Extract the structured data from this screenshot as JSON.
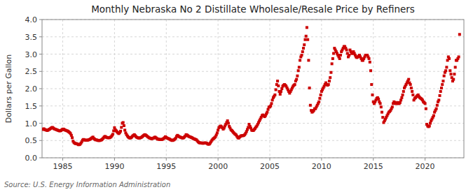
{
  "chart_data": {
    "type": "scatter",
    "title": "Monthly Nebraska No 2 Distillate Wholesale/Resale Price by Refiners",
    "ylabel": "Dollars per Gallon",
    "source": "Source: U.S. Energy Information Administration",
    "color": "#cc0000",
    "marker": "square",
    "grid": true,
    "xlim": [
      1983.0,
      2023.75
    ],
    "ylim": [
      0.0,
      4.0
    ],
    "xticks": [
      1985,
      1990,
      1995,
      2000,
      2005,
      2010,
      2015,
      2020
    ],
    "yticks": [
      {
        "value": 0.0,
        "label": "0.0"
      },
      0.5,
      {
        "value": 1.0,
        "label": "1.0"
      },
      1.5,
      {
        "value": 2.0,
        "label": "2.0"
      },
      2.5,
      {
        "value": 3.0,
        "label": "3.0"
      },
      3.5,
      {
        "value": 4.0,
        "label": "4.0"
      }
    ],
    "x": [
      1983.083,
      1983.167,
      1983.25,
      1983.333,
      1983.417,
      1983.5,
      1983.583,
      1983.667,
      1983.75,
      1983.833,
      1983.917,
      1984.0,
      1984.083,
      1984.167,
      1984.25,
      1984.333,
      1984.417,
      1984.5,
      1984.583,
      1984.667,
      1984.75,
      1984.833,
      1984.917,
      1985.0,
      1985.083,
      1985.167,
      1985.25,
      1985.333,
      1985.417,
      1985.5,
      1985.583,
      1985.667,
      1985.75,
      1985.833,
      1985.917,
      1986.0,
      1986.083,
      1986.167,
      1986.25,
      1986.333,
      1986.417,
      1986.5,
      1986.583,
      1986.667,
      1986.75,
      1986.833,
      1986.917,
      1987.0,
      1987.083,
      1987.167,
      1987.25,
      1987.333,
      1987.417,
      1987.5,
      1987.583,
      1987.667,
      1987.75,
      1987.833,
      1987.917,
      1988.0,
      1988.083,
      1988.167,
      1988.25,
      1988.333,
      1988.417,
      1988.5,
      1988.583,
      1988.667,
      1988.75,
      1988.833,
      1988.917,
      1989.0,
      1989.083,
      1989.167,
      1989.25,
      1989.333,
      1989.417,
      1989.5,
      1989.583,
      1989.667,
      1989.75,
      1989.833,
      1989.917,
      1990.0,
      1990.083,
      1990.167,
      1990.25,
      1990.333,
      1990.417,
      1990.5,
      1990.583,
      1990.667,
      1990.75,
      1990.833,
      1990.917,
      1991.0,
      1991.083,
      1991.167,
      1991.25,
      1991.333,
      1991.417,
      1991.5,
      1991.583,
      1991.667,
      1991.75,
      1991.833,
      1991.917,
      1992.0,
      1992.083,
      1992.167,
      1992.25,
      1992.333,
      1992.417,
      1992.5,
      1992.583,
      1992.667,
      1992.75,
      1992.833,
      1992.917,
      1993.0,
      1993.083,
      1993.167,
      1993.25,
      1993.333,
      1993.417,
      1993.5,
      1993.583,
      1993.667,
      1993.75,
      1993.833,
      1993.917,
      1994.0,
      1994.083,
      1994.167,
      1994.25,
      1994.333,
      1994.417,
      1994.5,
      1994.583,
      1994.667,
      1994.75,
      1994.833,
      1994.917,
      1995.0,
      1995.083,
      1995.167,
      1995.25,
      1995.333,
      1995.417,
      1995.5,
      1995.583,
      1995.667,
      1995.75,
      1995.833,
      1995.917,
      1996.0,
      1996.083,
      1996.167,
      1996.25,
      1996.333,
      1996.417,
      1996.5,
      1996.583,
      1996.667,
      1996.75,
      1996.833,
      1996.917,
      1997.0,
      1997.083,
      1997.167,
      1997.25,
      1997.333,
      1997.417,
      1997.5,
      1997.583,
      1997.667,
      1997.75,
      1997.833,
      1997.917,
      1998.0,
      1998.083,
      1998.167,
      1998.25,
      1998.333,
      1998.417,
      1998.5,
      1998.583,
      1998.667,
      1998.75,
      1998.833,
      1998.917,
      1999.0,
      1999.083,
      1999.167,
      1999.25,
      1999.333,
      1999.417,
      1999.5,
      1999.583,
      1999.667,
      1999.75,
      1999.833,
      1999.917,
      2000.0,
      2000.083,
      2000.167,
      2000.25,
      2000.333,
      2000.417,
      2000.5,
      2000.583,
      2000.667,
      2000.75,
      2000.833,
      2000.917,
      2001.0,
      2001.083,
      2001.167,
      2001.25,
      2001.333,
      2001.417,
      2001.5,
      2001.583,
      2001.667,
      2001.75,
      2001.833,
      2001.917,
      2002.0,
      2002.083,
      2002.167,
      2002.25,
      2002.333,
      2002.417,
      2002.5,
      2002.583,
      2002.667,
      2002.75,
      2002.833,
      2002.917,
      2003.0,
      2003.083,
      2003.167,
      2003.25,
      2003.333,
      2003.417,
      2003.5,
      2003.583,
      2003.667,
      2003.75,
      2003.833,
      2003.917,
      2004.0,
      2004.083,
      2004.167,
      2004.25,
      2004.333,
      2004.417,
      2004.5,
      2004.583,
      2004.667,
      2004.75,
      2004.833,
      2004.917,
      2005.0,
      2005.083,
      2005.167,
      2005.25,
      2005.333,
      2005.417,
      2005.5,
      2005.583,
      2005.667,
      2005.75,
      2005.833,
      2005.917,
      2006.0,
      2006.083,
      2006.167,
      2006.25,
      2006.333,
      2006.417,
      2006.5,
      2006.583,
      2006.667,
      2006.75,
      2006.833,
      2006.917,
      2007.0,
      2007.083,
      2007.167,
      2007.25,
      2007.333,
      2007.417,
      2007.5,
      2007.583,
      2007.667,
      2007.75,
      2007.833,
      2007.917,
      2008.0,
      2008.083,
      2008.167,
      2008.25,
      2008.333,
      2008.417,
      2008.5,
      2008.583,
      2008.667,
      2008.75,
      2008.833,
      2008.917,
      2009.0,
      2009.083,
      2009.167,
      2009.25,
      2009.333,
      2009.417,
      2009.5,
      2009.583,
      2009.667,
      2009.75,
      2009.833,
      2009.917,
      2010.0,
      2010.083,
      2010.167,
      2010.25,
      2010.333,
      2010.417,
      2010.5,
      2010.583,
      2010.667,
      2010.75,
      2010.833,
      2010.917,
      2011.0,
      2011.083,
      2011.167,
      2011.25,
      2011.333,
      2011.417,
      2011.5,
      2011.583,
      2011.667,
      2011.75,
      2011.833,
      2011.917,
      2012.0,
      2012.083,
      2012.167,
      2012.25,
      2012.333,
      2012.417,
      2012.5,
      2012.583,
      2012.667,
      2012.75,
      2012.833,
      2012.917,
      2013.0,
      2013.083,
      2013.167,
      2013.25,
      2013.333,
      2013.417,
      2013.5,
      2013.583,
      2013.667,
      2013.75,
      2013.833,
      2013.917,
      2014.0,
      2014.083,
      2014.167,
      2014.25,
      2014.333,
      2014.417,
      2014.5,
      2014.583,
      2014.667,
      2014.75,
      2014.833,
      2014.917,
      2015.0,
      2015.083,
      2015.167,
      2015.25,
      2015.333,
      2015.417,
      2015.5,
      2015.583,
      2015.667,
      2015.75,
      2015.833,
      2015.917,
      2016.0,
      2016.083,
      2016.167,
      2016.25,
      2016.333,
      2016.417,
      2016.5,
      2016.583,
      2016.667,
      2016.75,
      2016.833,
      2016.917,
      2017.0,
      2017.083,
      2017.167,
      2017.25,
      2017.333,
      2017.417,
      2017.5,
      2017.583,
      2017.667,
      2017.75,
      2017.833,
      2017.917,
      2018.0,
      2018.083,
      2018.167,
      2018.25,
      2018.333,
      2018.417,
      2018.5,
      2018.583,
      2018.667,
      2018.75,
      2018.833,
      2018.917,
      2019.0,
      2019.083,
      2019.167,
      2019.25,
      2019.333,
      2019.417,
      2019.5,
      2019.583,
      2019.667,
      2019.75,
      2019.833,
      2019.917,
      2020.0,
      2020.083,
      2020.167,
      2020.25,
      2020.333,
      2020.417,
      2020.5,
      2020.583,
      2020.667,
      2020.75,
      2020.833,
      2020.917,
      2021.0,
      2021.083,
      2021.167,
      2021.25,
      2021.333,
      2021.417,
      2021.5,
      2021.583,
      2021.667,
      2021.75,
      2021.833,
      2021.917,
      2022.0,
      2022.083,
      2022.167,
      2022.25,
      2022.333,
      2022.417,
      2022.5,
      2022.583,
      2022.667,
      2022.75,
      2022.833,
      2022.917,
      2023.0,
      2023.083,
      2023.167,
      2023.25,
      2023.333
    ],
    "values": [
      0.82,
      0.84,
      0.82,
      0.81,
      0.8,
      0.79,
      0.8,
      0.82,
      0.83,
      0.85,
      0.87,
      0.88,
      0.86,
      0.84,
      0.83,
      0.82,
      0.81,
      0.8,
      0.79,
      0.78,
      0.78,
      0.79,
      0.81,
      0.83,
      0.83,
      0.81,
      0.8,
      0.79,
      0.78,
      0.77,
      0.75,
      0.73,
      0.7,
      0.65,
      0.58,
      0.48,
      0.44,
      0.42,
      0.41,
      0.41,
      0.4,
      0.38,
      0.38,
      0.39,
      0.42,
      0.46,
      0.51,
      0.53,
      0.52,
      0.51,
      0.51,
      0.51,
      0.51,
      0.52,
      0.53,
      0.54,
      0.56,
      0.58,
      0.6,
      0.56,
      0.54,
      0.52,
      0.52,
      0.51,
      0.5,
      0.5,
      0.5,
      0.51,
      0.52,
      0.54,
      0.57,
      0.6,
      0.62,
      0.6,
      0.59,
      0.58,
      0.58,
      0.58,
      0.59,
      0.61,
      0.64,
      0.68,
      0.78,
      0.87,
      0.81,
      0.78,
      0.75,
      0.72,
      0.7,
      0.73,
      0.77,
      0.88,
      1.0,
      1.02,
      0.93,
      0.8,
      0.72,
      0.67,
      0.63,
      0.6,
      0.58,
      0.57,
      0.58,
      0.6,
      0.63,
      0.65,
      0.67,
      0.64,
      0.61,
      0.59,
      0.58,
      0.57,
      0.57,
      0.58,
      0.59,
      0.61,
      0.63,
      0.65,
      0.67,
      0.66,
      0.64,
      0.62,
      0.6,
      0.58,
      0.57,
      0.56,
      0.55,
      0.56,
      0.57,
      0.58,
      0.6,
      0.58,
      0.56,
      0.54,
      0.54,
      0.53,
      0.53,
      0.53,
      0.53,
      0.54,
      0.56,
      0.58,
      0.61,
      0.59,
      0.57,
      0.56,
      0.55,
      0.54,
      0.52,
      0.51,
      0.5,
      0.51,
      0.52,
      0.54,
      0.57,
      0.62,
      0.65,
      0.63,
      0.61,
      0.6,
      0.59,
      0.58,
      0.57,
      0.58,
      0.6,
      0.63,
      0.67,
      0.66,
      0.64,
      0.62,
      0.61,
      0.6,
      0.59,
      0.58,
      0.56,
      0.55,
      0.54,
      0.53,
      0.52,
      0.49,
      0.46,
      0.44,
      0.43,
      0.43,
      0.43,
      0.42,
      0.42,
      0.43,
      0.43,
      0.43,
      0.42,
      0.4,
      0.39,
      0.4,
      0.43,
      0.47,
      0.51,
      0.54,
      0.56,
      0.58,
      0.61,
      0.66,
      0.72,
      0.8,
      0.87,
      0.9,
      0.92,
      0.9,
      0.87,
      0.83,
      0.86,
      0.92,
      0.97,
      1.02,
      1.07,
      1.0,
      0.91,
      0.86,
      0.81,
      0.79,
      0.76,
      0.73,
      0.7,
      0.68,
      0.66,
      0.62,
      0.58,
      0.57,
      0.6,
      0.62,
      0.64,
      0.64,
      0.64,
      0.65,
      0.67,
      0.71,
      0.76,
      0.82,
      0.88,
      0.97,
      0.91,
      0.86,
      0.8,
      0.79,
      0.79,
      0.82,
      0.85,
      0.89,
      0.92,
      0.97,
      1.02,
      1.07,
      1.12,
      1.17,
      1.22,
      1.24,
      1.22,
      1.19,
      1.22,
      1.27,
      1.32,
      1.4,
      1.47,
      1.47,
      1.5,
      1.57,
      1.67,
      1.74,
      1.78,
      1.82,
      1.97,
      2.12,
      2.22,
      2.08,
      1.92,
      1.84,
      1.92,
      2.0,
      2.07,
      2.1,
      2.12,
      2.1,
      2.07,
      2.02,
      1.97,
      1.92,
      1.87,
      1.92,
      1.97,
      2.02,
      2.07,
      2.1,
      2.12,
      2.22,
      2.27,
      2.37,
      2.52,
      2.62,
      2.82,
      2.92,
      2.97,
      3.07,
      3.17,
      3.27,
      3.42,
      3.52,
      3.77,
      3.42,
      2.82,
      2.02,
      1.52,
      1.37,
      1.32,
      1.34,
      1.37,
      1.42,
      1.42,
      1.47,
      1.52,
      1.57,
      1.62,
      1.72,
      1.82,
      1.92,
      1.97,
      2.02,
      2.07,
      2.12,
      2.17,
      2.12,
      2.1,
      2.12,
      2.22,
      2.32,
      2.47,
      2.72,
      2.87,
      3.02,
      3.17,
      3.12,
      3.07,
      3.02,
      2.97,
      2.92,
      2.87,
      2.97,
      3.07,
      3.12,
      3.17,
      3.22,
      3.22,
      3.17,
      3.12,
      3.02,
      2.92,
      2.97,
      3.12,
      3.07,
      3.02,
      3.02,
      3.07,
      3.02,
      2.97,
      2.92,
      2.9,
      2.92,
      2.94,
      2.97,
      2.92,
      2.87,
      2.82,
      2.82,
      2.87,
      2.92,
      2.97,
      2.97,
      2.97,
      2.92,
      2.87,
      2.77,
      2.52,
      2.12,
      1.82,
      1.62,
      1.57,
      1.62,
      1.67,
      1.72,
      1.74,
      1.7,
      1.62,
      1.57,
      1.47,
      1.32,
      1.17,
      1.02,
      1.07,
      1.12,
      1.17,
      1.22,
      1.27,
      1.32,
      1.34,
      1.37,
      1.42,
      1.47,
      1.57,
      1.62,
      1.6,
      1.57,
      1.57,
      1.6,
      1.57,
      1.57,
      1.6,
      1.67,
      1.74,
      1.82,
      1.92,
      2.02,
      2.07,
      2.12,
      2.17,
      2.22,
      2.27,
      2.17,
      2.12,
      2.02,
      1.92,
      1.82,
      1.67,
      1.72,
      1.74,
      1.77,
      1.8,
      1.82,
      1.77,
      1.74,
      1.72,
      1.7,
      1.67,
      1.62,
      1.6,
      1.57,
      1.42,
      0.97,
      0.92,
      0.9,
      0.92,
      1.0,
      1.07,
      1.12,
      1.17,
      1.22,
      1.32,
      1.37,
      1.42,
      1.52,
      1.62,
      1.67,
      1.8,
      1.92,
      2.02,
      2.12,
      2.22,
      2.37,
      2.47,
      2.52,
      2.62,
      2.82,
      2.92,
      2.87,
      2.52,
      2.42,
      2.32,
      2.22,
      2.27,
      2.42,
      2.62,
      2.82,
      2.82,
      2.87,
      2.92,
      3.57
    ]
  }
}
